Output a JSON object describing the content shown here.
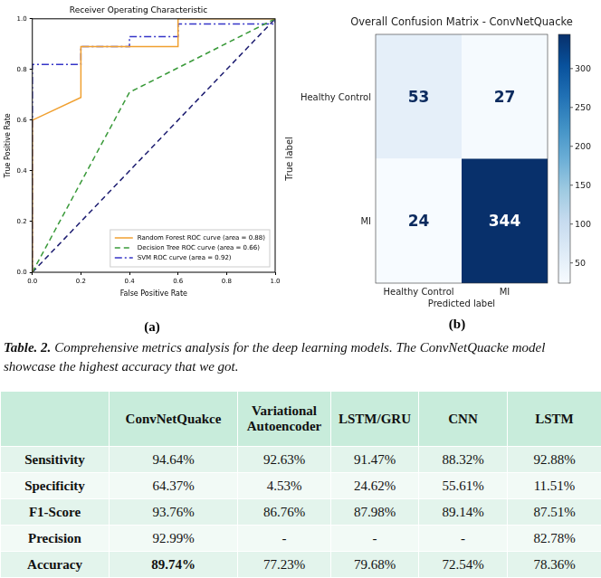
{
  "chart_data": [
    {
      "type": "line",
      "title": "Receiver Operating Characteristic",
      "label": "(a)",
      "xlabel": "False Positive Rate",
      "ylabel": "True Positive Rate",
      "xlim": [
        0,
        1
      ],
      "ylim": [
        0,
        1
      ],
      "xticks": [
        {
          "value": 0,
          "label": "0.0"
        },
        {
          "value": 0.2,
          "label": "0.2"
        },
        {
          "value": 0.4,
          "label": "0.4"
        },
        {
          "value": 0.6,
          "label": "0.6"
        },
        {
          "value": 0.8,
          "label": "0.8"
        },
        {
          "value": 1,
          "label": "1.0"
        }
      ],
      "yticks": [
        {
          "value": 0,
          "label": "0.0"
        },
        {
          "value": 0.2,
          "label": "0.2"
        },
        {
          "value": 0.4,
          "label": "0.4"
        },
        {
          "value": 0.6,
          "label": "0.6"
        },
        {
          "value": 0.8,
          "label": "0.8"
        },
        {
          "value": 1,
          "label": "1.0"
        }
      ],
      "grid": false,
      "legend": "lower right",
      "series": [
        {
          "name": "Random Forest ROC curve (area = 0.88)",
          "color": "#f0a030",
          "line_style": "solid",
          "x": [
            0,
            0,
            0.2,
            0.2,
            0.6,
            0.6,
            1
          ],
          "values": [
            0,
            0.6,
            0.69,
            0.89,
            0.89,
            1,
            1
          ]
        },
        {
          "name": "Decision Tree ROC curve (area = 0.66)",
          "color": "#3a9a3a",
          "line_style": "dashed",
          "x": [
            0,
            0.4,
            1
          ],
          "values": [
            0,
            0.71,
            1
          ]
        },
        {
          "name": "SVM ROC curve (area = 0.92)",
          "color": "#3535c8",
          "line_style": "dashdot",
          "x": [
            0,
            0,
            0.2,
            0.2,
            0.4,
            0.4,
            0.6,
            0.6,
            1,
            1
          ],
          "values": [
            0,
            0.82,
            0.82,
            0.89,
            0.89,
            0.93,
            0.93,
            0.98,
            0.98,
            1
          ]
        },
        {
          "color": "#1c1c70",
          "line_style": "dashed",
          "x": [
            0,
            1
          ],
          "values": [
            0,
            1
          ]
        }
      ]
    },
    {
      "type": "heatmap",
      "title": "Overall Confusion Matrix - ConvNetQuacke",
      "label": "(b)",
      "xlabel": "Predicted label",
      "ylabel": "True label",
      "x": [
        "Healthy Control",
        "MI"
      ],
      "y": [
        "Healthy Control",
        "MI"
      ],
      "cells": [
        [
          53,
          27
        ],
        [
          24,
          344
        ]
      ],
      "data_labels": true,
      "colorbar": {
        "range": [
          24,
          344
        ],
        "ticks": [
          50,
          100,
          150,
          200,
          250,
          300
        ]
      }
    }
  ],
  "caption": {
    "label": "Table. 2.",
    "text": "Comprehensive metrics analysis for the deep learning models. The ConvNetQuacke model showcase the highest accuracy that we got."
  },
  "table": {
    "columns": [
      "ConvNetQuakce",
      "Variational Autoencoder",
      "LSTM/GRU",
      "CNN",
      "LSTM"
    ],
    "rows": [
      {
        "label": "Sensitivity",
        "cells": [
          "94.64%",
          "92.63%",
          "91.47%",
          "88.32%",
          "92.88%"
        ]
      },
      {
        "label": "Specificity",
        "cells": [
          "64.37%",
          "4.53%",
          "24.62%",
          "55.61%",
          "11.51%"
        ]
      },
      {
        "label": "F1-Score",
        "cells": [
          "93.76%",
          "86.76%",
          "87.98%",
          "89.14%",
          "87.51%"
        ]
      },
      {
        "label": "Precision",
        "cells": [
          "92.99%",
          "-",
          "-",
          "-",
          "82.78%"
        ]
      },
      {
        "label": "Accuracy",
        "cells": [
          "89.74%",
          "77.23%",
          "79.68%",
          "72.54%",
          "78.36%"
        ]
      }
    ]
  }
}
